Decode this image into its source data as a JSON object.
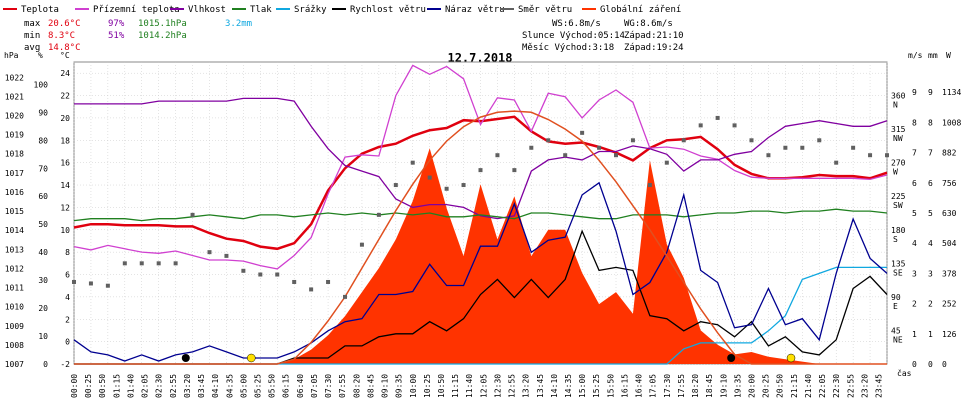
{
  "colors": {
    "temperature": "#e0000f",
    "dew_point": "#d040d0",
    "humidity": "#8000a0",
    "pressure": "#208020",
    "precipitation": "#10a8e0",
    "wind_speed": "#000000",
    "gust": "#000090",
    "wind_dir": "#606060",
    "radiation": "#ff3300",
    "grid": "#c8c8c8"
  },
  "legend": [
    {
      "key": "temperature",
      "label": "Teplota"
    },
    {
      "key": "dew_point",
      "label": "Přízemní teplota"
    },
    {
      "key": "humidity",
      "label": "Vlhkost"
    },
    {
      "key": "pressure",
      "label": "Tlak"
    },
    {
      "key": "precipitation",
      "label": "Srážky"
    },
    {
      "key": "wind_speed",
      "label": "Rychlost větru"
    },
    {
      "key": "gust",
      "label": "Náraz větru"
    },
    {
      "key": "wind_dir",
      "label": "Směr větru"
    },
    {
      "key": "radiation",
      "label": "Globální záření"
    }
  ],
  "stats": {
    "max_label": "max",
    "max_temp": "20.6°C",
    "max_hum": "97%",
    "max_press": "1015.1hPa",
    "precip_total": "3.2mm",
    "min_label": "min",
    "min_temp": "8.3°C",
    "min_hum": "51%",
    "min_press": "1014.2hPa",
    "avg_label": "avg",
    "avg_temp": "14.8°C",
    "ws": "WS:6.8m/s",
    "wg": "WG:8.6m/s",
    "sun": "Slunce Východ:05:14",
    "sun_set": "Západ:21:10",
    "moon": "Měsíc Východ:3:18",
    "moon_set": "Západ:19:24"
  },
  "chart_data": {
    "type": "line",
    "title": "12.7.2018",
    "xlabel": "čas",
    "axes": {
      "hPa": {
        "label": "hPa",
        "ticks": [
          "1007",
          "1008",
          "1009",
          "1010",
          "1011",
          "1012",
          "1013",
          "1014",
          "1015",
          "1016",
          "1017",
          "1018",
          "1019",
          "1020",
          "1021",
          "1022"
        ]
      },
      "percent": {
        "label": "%",
        "ticks": [
          "0",
          "10",
          "20",
          "30",
          "40",
          "50",
          "60",
          "70",
          "80",
          "90",
          "100"
        ]
      },
      "celsius": {
        "label": "°C",
        "ticks": [
          "-2",
          "0",
          "2",
          "4",
          "6",
          "8",
          "10",
          "12",
          "14",
          "16",
          "18",
          "20",
          "22",
          "24"
        ]
      },
      "wind_dir": {
        "label": "",
        "ticks": [
          "NE 45",
          "E 90",
          "SE 135",
          "S 180",
          "SW 225",
          "W 270",
          "NW 315",
          "N 360"
        ]
      },
      "ms": {
        "label": "m/s",
        "ticks": [
          "0",
          "1",
          "2",
          "3",
          "4",
          "5",
          "6",
          "7",
          "8",
          "9"
        ]
      },
      "mm": {
        "label": "mm",
        "ticks": [
          "0",
          "1",
          "2",
          "3",
          "4",
          "5",
          "6",
          "7",
          "8",
          "9"
        ]
      },
      "W": {
        "label": "W",
        "ticks": [
          "0",
          "126",
          "252",
          "378",
          "504",
          "630",
          "756",
          "882",
          "1008",
          "1134"
        ]
      }
    },
    "x_ticks": [
      "00:00",
      "00:25",
      "00:50",
      "01:15",
      "01:40",
      "02:05",
      "02:30",
      "02:55",
      "03:20",
      "03:45",
      "04:10",
      "04:35",
      "05:00",
      "05:25",
      "05:50",
      "06:15",
      "06:40",
      "07:05",
      "07:30",
      "07:55",
      "08:20",
      "08:45",
      "09:10",
      "09:35",
      "10:00",
      "10:25",
      "10:50",
      "11:15",
      "11:40",
      "12:05",
      "12:30",
      "12:55",
      "13:20",
      "13:45",
      "14:10",
      "14:35",
      "15:00",
      "15:25",
      "15:50",
      "16:15",
      "16:40",
      "17:05",
      "17:30",
      "17:55",
      "18:20",
      "18:45",
      "19:10",
      "19:35",
      "20:00",
      "20:25",
      "20:50",
      "21:15",
      "21:40",
      "22:05",
      "22:30",
      "22:55",
      "23:20",
      "23:45"
    ],
    "x_hours": [
      0,
      0.5,
      1,
      1.5,
      2,
      2.5,
      3,
      3.5,
      4,
      4.5,
      5,
      5.5,
      6,
      6.5,
      7,
      7.5,
      8,
      8.5,
      9,
      9.5,
      10,
      10.5,
      11,
      11.5,
      12,
      12.5,
      13,
      13.5,
      14,
      14.5,
      15,
      15.5,
      16,
      16.5,
      17,
      17.5,
      18,
      18.5,
      19,
      19.5,
      20,
      20.5,
      21,
      21.5,
      22,
      22.5,
      23,
      23.5,
      24
    ],
    "series": [
      {
        "name": "Teplota",
        "key": "temperature",
        "axis": "celsius",
        "values": [
          10.2,
          10.5,
          10.5,
          10.4,
          10.4,
          10.4,
          10.3,
          10.3,
          9.7,
          9.2,
          9,
          8.5,
          8.3,
          8.8,
          10.5,
          13.5,
          15.5,
          16.8,
          17.4,
          17.7,
          18.4,
          18.9,
          19.1,
          19.8,
          19.7,
          19.9,
          20.1,
          18.8,
          17.9,
          17.7,
          17.8,
          17.4,
          16.9,
          16.2,
          17.3,
          18,
          18.1,
          18.3,
          17.2,
          15.8,
          15,
          14.6,
          14.6,
          14.7,
          14.9,
          14.8,
          14.8,
          14.6,
          15.1
        ]
      },
      {
        "name": "Přízemní teplota",
        "key": "dew_point",
        "axis": "celsius",
        "values": [
          8.5,
          8.2,
          8.6,
          8.3,
          8,
          7.9,
          8.1,
          7.7,
          7.3,
          7.3,
          7.2,
          6.8,
          6.5,
          7.7,
          9.3,
          13.2,
          16.5,
          16.7,
          16.6,
          22,
          24.7,
          23.9,
          24.6,
          23.5,
          19.4,
          21.8,
          21.6,
          18.8,
          22.2,
          21.9,
          20,
          21.6,
          22.5,
          21.4,
          17.3,
          17.4,
          17.2,
          16.6,
          16.3,
          15.3,
          14.7,
          14.6,
          14.6,
          14.6,
          14.6,
          14.6,
          14.6,
          14.5,
          14.9
        ]
      },
      {
        "name": "Vlhkost",
        "key": "humidity",
        "axis": "percent",
        "values": [
          93,
          93,
          93,
          93,
          93,
          94,
          94,
          94,
          94,
          94,
          95,
          95,
          95,
          94,
          85,
          77,
          71,
          69,
          67,
          59,
          56,
          57,
          57,
          56,
          53,
          52,
          53,
          69,
          73,
          74,
          73,
          76,
          76,
          78,
          77,
          75,
          69,
          73,
          73,
          75,
          76,
          81,
          85,
          86,
          87,
          86,
          85,
          85,
          87
        ]
      },
      {
        "name": "Tlak",
        "key": "pressure",
        "axis": "hPa",
        "values": [
          1014.5,
          1014.6,
          1014.6,
          1014.6,
          1014.5,
          1014.6,
          1014.6,
          1014.7,
          1014.8,
          1014.7,
          1014.6,
          1014.8,
          1014.8,
          1014.7,
          1014.8,
          1014.9,
          1014.8,
          1014.9,
          1014.8,
          1014.9,
          1014.8,
          1014.9,
          1014.7,
          1014.7,
          1014.8,
          1014.7,
          1014.6,
          1014.9,
          1014.9,
          1014.8,
          1014.7,
          1014.6,
          1014.6,
          1014.8,
          1014.8,
          1014.8,
          1014.7,
          1014.8,
          1014.9,
          1014.9,
          1015,
          1015,
          1014.9,
          1015,
          1015,
          1015.1,
          1015,
          1015,
          1014.9
        ]
      },
      {
        "name": "Srážky",
        "key": "precipitation",
        "axis": "mm",
        "values": [
          0,
          0,
          0,
          0,
          0,
          0,
          0,
          0,
          0,
          0,
          0,
          0,
          0,
          0,
          0,
          0,
          0,
          0,
          0,
          0,
          0,
          0,
          0,
          0,
          0,
          0,
          0,
          0,
          0,
          0,
          0,
          0,
          0,
          0,
          0,
          0,
          0.5,
          0.7,
          0.7,
          0.7,
          0.7,
          1.1,
          1.6,
          2.8,
          3.0,
          3.2,
          3.2,
          3.2,
          3.2
        ]
      },
      {
        "name": "Rychlost větru",
        "key": "wind_speed",
        "axis": "ms",
        "values": [
          0,
          0,
          0,
          0,
          0,
          0,
          0,
          0,
          0,
          0,
          0,
          0,
          0,
          0.2,
          0.2,
          0.2,
          0.6,
          0.6,
          0.9,
          1,
          1,
          1.4,
          1.1,
          1.5,
          2.3,
          2.8,
          2.2,
          2.8,
          2.2,
          2.8,
          4.4,
          3.1,
          3.2,
          3.1,
          1.6,
          1.5,
          1.1,
          1.4,
          1.3,
          0.9,
          1.4,
          0.6,
          0.9,
          0.4,
          0.3,
          0.8,
          2.5,
          2.9,
          2.3
        ]
      },
      {
        "name": "Náraz větru",
        "key": "gust",
        "axis": "ms",
        "values": [
          0.8,
          0.4,
          0.3,
          0.1,
          0.3,
          0.1,
          0.3,
          0.4,
          0.6,
          0.4,
          0.2,
          0.2,
          0.2,
          0.4,
          0.7,
          1.1,
          1.4,
          1.5,
          2.3,
          2.3,
          2.4,
          3.3,
          2.6,
          2.6,
          3.9,
          3.9,
          5.3,
          3.7,
          4.1,
          4.2,
          5.6,
          6,
          4.4,
          2.3,
          2.7,
          3.7,
          5.6,
          3.1,
          2.7,
          1.2,
          1.3,
          2.5,
          1.3,
          1.5,
          0.8,
          3,
          4.8,
          3.5,
          3
        ]
      },
      {
        "name": "Globální záření",
        "key": "radiation",
        "axis": "W",
        "values": [
          0,
          0,
          0,
          0,
          0,
          0,
          0,
          0,
          0,
          0,
          0,
          0,
          0,
          20,
          60,
          120,
          200,
          300,
          400,
          520,
          680,
          900,
          650,
          450,
          750,
          520,
          700,
          450,
          560,
          560,
          380,
          250,
          300,
          210,
          850,
          500,
          360,
          140,
          80,
          40,
          50,
          30,
          20,
          10,
          0,
          0,
          0,
          0,
          0
        ]
      },
      {
        "name": "",
        "key": "radiation_clear",
        "axis": "W",
        "values": [
          0,
          0,
          0,
          0,
          0,
          0,
          0,
          0,
          0,
          0,
          0,
          0,
          0,
          20,
          90,
          180,
          280,
          400,
          520,
          640,
          750,
          850,
          930,
          990,
          1030,
          1050,
          1055,
          1050,
          1020,
          980,
          930,
          850,
          760,
          660,
          560,
          450,
          340,
          230,
          130,
          40,
          0,
          0,
          0,
          0,
          0,
          0,
          0,
          0,
          0
        ]
      },
      {
        "name": "Směr větru",
        "key": "wind_dir",
        "axis": "wind_dir",
        "values": [
          110,
          108,
          105,
          135,
          135,
          135,
          135,
          200,
          150,
          145,
          125,
          120,
          120,
          110,
          100,
          110,
          90,
          160,
          200,
          240,
          270,
          250,
          235,
          240,
          260,
          280,
          260,
          290,
          300,
          280,
          310,
          290,
          280,
          300,
          240,
          270,
          300,
          320,
          330,
          320,
          300,
          280,
          290,
          290,
          300,
          270,
          290,
          280,
          280
        ]
      }
    ],
    "markers": {
      "sunrise": "05:14",
      "sunset": "21:10",
      "moonrise": "03:18",
      "moonset": "19:24"
    }
  }
}
